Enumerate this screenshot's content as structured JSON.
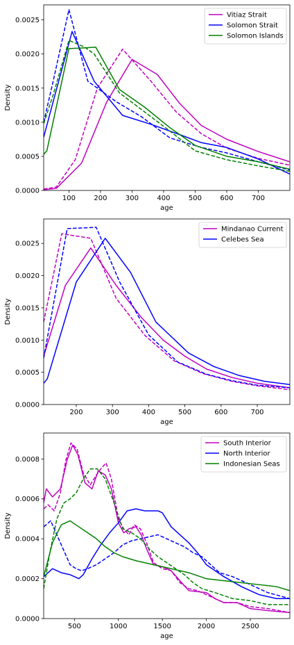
{
  "chart_data": [
    {
      "type": "line",
      "xlabel": "age",
      "ylabel": "Density",
      "xlim": [
        20,
        800
      ],
      "ylim": [
        0,
        0.00272
      ],
      "xticks": [
        100,
        200,
        300,
        400,
        500,
        600,
        700
      ],
      "yticks": [
        0,
        0.0005,
        0.001,
        0.0015,
        0.002,
        0.0025
      ],
      "ytick_labels": [
        "0.0000",
        "0.0005",
        "0.0010",
        "0.0015",
        "0.0020",
        "0.0025"
      ],
      "grid": false,
      "legend_position": "top-right",
      "legend": [
        "Vitiaz Strait",
        "Solomon Strait",
        "Solomon Islands"
      ],
      "series": [
        {
          "name": "Vitiaz Strait",
          "color": "#bf00bf",
          "style": "solid",
          "x": [
            20,
            60,
            140,
            220,
            300,
            380,
            450,
            520,
            600,
            700,
            800
          ],
          "y": [
            1e-05,
            3e-05,
            0.0004,
            0.0013,
            0.00192,
            0.0017,
            0.00128,
            0.00095,
            0.00075,
            0.00057,
            0.00042
          ]
        },
        {
          "name": "Vitiaz Strait",
          "color": "#bf00bf",
          "style": "dashed",
          "x": [
            20,
            60,
            120,
            190,
            270,
            360,
            440,
            520,
            600,
            700,
            800
          ],
          "y": [
            2e-05,
            5e-05,
            0.00045,
            0.0015,
            0.00207,
            0.0016,
            0.00115,
            0.00083,
            0.00062,
            0.00047,
            0.00037
          ]
        },
        {
          "name": "Solomon Strait",
          "color": "#0000ff",
          "style": "solid",
          "x": [
            20,
            50,
            110,
            180,
            270,
            360,
            450,
            520,
            600,
            700,
            800
          ],
          "y": [
            0.00078,
            0.0013,
            0.00233,
            0.0016,
            0.0011,
            0.00097,
            0.00082,
            0.0007,
            0.00063,
            0.00046,
            0.00024
          ]
        },
        {
          "name": "Solomon Strait",
          "color": "#0000ff",
          "style": "dashed",
          "x": [
            20,
            50,
            100,
            160,
            250,
            330,
            420,
            520,
            600,
            700,
            800
          ],
          "y": [
            0.001,
            0.0016,
            0.00265,
            0.0016,
            0.0013,
            0.00108,
            0.00077,
            0.00063,
            0.00055,
            0.00042,
            0.0003
          ]
        },
        {
          "name": "Solomon Islands",
          "color": "#008000",
          "style": "solid",
          "x": [
            20,
            30,
            100,
            150,
            185,
            260,
            340,
            420,
            500,
            600,
            700,
            800
          ],
          "y": [
            0.00053,
            0.00058,
            0.00208,
            0.00209,
            0.0021,
            0.00148,
            0.00122,
            0.00092,
            0.00066,
            0.0005,
            0.00042,
            0.00031
          ]
        },
        {
          "name": "Solomon Islands",
          "color": "#008000",
          "style": "dashed",
          "x": [
            20,
            50,
            100,
            150,
            180,
            260,
            340,
            420,
            500,
            600,
            700,
            800
          ],
          "y": [
            0.00098,
            0.0014,
            0.0022,
            0.0021,
            0.002,
            0.00143,
            0.00115,
            0.00087,
            0.00058,
            0.00045,
            0.00036,
            0.00028
          ]
        }
      ]
    },
    {
      "type": "line",
      "xlabel": "age",
      "ylabel": "Density",
      "xlim": [
        110,
        790
      ],
      "ylim": [
        0,
        0.00288
      ],
      "xticks": [
        200,
        300,
        400,
        500,
        600,
        700
      ],
      "yticks": [
        0,
        0.0005,
        0.001,
        0.0015,
        0.002,
        0.0025
      ],
      "ytick_labels": [
        "0.0000",
        "0.0005",
        "0.0010",
        "0.0015",
        "0.0020",
        "0.0025"
      ],
      "grid": false,
      "legend_position": "top-right",
      "legend": [
        "Mindanao Current",
        "Celebes Sea"
      ],
      "series": [
        {
          "name": "Mindanao Current",
          "color": "#bf00bf",
          "style": "solid",
          "x": [
            110,
            170,
            240,
            310,
            380,
            440,
            500,
            560,
            630,
            700,
            790
          ],
          "y": [
            0.00075,
            0.00185,
            0.00243,
            0.00185,
            0.00135,
            0.001,
            0.00075,
            0.00055,
            0.00042,
            0.00033,
            0.00026
          ]
        },
        {
          "name": "Mindanao Current",
          "color": "#bf00bf",
          "style": "dashed",
          "x": [
            110,
            160,
            240,
            310,
            390,
            470,
            550,
            630,
            700,
            790
          ],
          "y": [
            0.00128,
            0.00265,
            0.00258,
            0.00165,
            0.00107,
            0.00068,
            0.00048,
            0.00036,
            0.00029,
            0.00023
          ]
        },
        {
          "name": "Celebes Sea",
          "color": "#0000ff",
          "style": "solid",
          "x": [
            110,
            120,
            200,
            280,
            350,
            420,
            510,
            580,
            650,
            720,
            790
          ],
          "y": [
            0.00033,
            0.0004,
            0.0019,
            0.00258,
            0.00205,
            0.00128,
            0.0008,
            0.00059,
            0.00045,
            0.00036,
            0.00031
          ]
        },
        {
          "name": "Celebes Sea",
          "color": "#0000ff",
          "style": "dashed",
          "x": [
            110,
            175,
            255,
            320,
            400,
            480,
            560,
            630,
            700,
            790
          ],
          "y": [
            0.00072,
            0.00273,
            0.00275,
            0.0019,
            0.00108,
            0.00066,
            0.00047,
            0.00037,
            0.0003,
            0.00026
          ]
        }
      ]
    },
    {
      "type": "line",
      "xlabel": "age",
      "ylabel": "Density",
      "xlim": [
        150,
        2950
      ],
      "ylim": [
        0,
        0.00093
      ],
      "xticks": [
        500,
        1000,
        1500,
        2000,
        2500
      ],
      "yticks": [
        0,
        0.0002,
        0.0004,
        0.0006,
        0.0008
      ],
      "ytick_labels": [
        "0.0000",
        "0.0002",
        "0.0004",
        "0.0006",
        "0.0008"
      ],
      "grid": false,
      "legend_position": "top-right",
      "legend": [
        "South Interior",
        "North Interior",
        "Indonesian Seas"
      ],
      "series": [
        {
          "name": "South Interior",
          "color": "#bf00bf",
          "style": "solid",
          "x": [
            150,
            180,
            250,
            340,
            420,
            480,
            540,
            620,
            700,
            770,
            850,
            920,
            1000,
            1060,
            1120,
            1200,
            1260,
            1320,
            1400,
            1500,
            1600,
            1700,
            1800,
            1900,
            2000,
            2100,
            2200,
            2350,
            2500,
            2700,
            2950
          ],
          "y": [
            0.00058,
            0.00065,
            0.00061,
            0.00065,
            0.0008,
            0.00087,
            0.00082,
            0.00068,
            0.00065,
            0.00074,
            0.00072,
            0.00065,
            0.00048,
            0.00043,
            0.00045,
            0.00046,
            0.00042,
            0.00035,
            0.00027,
            0.00026,
            0.00024,
            0.00019,
            0.00014,
            0.000135,
            0.00013,
            0.0001,
            8e-05,
            8e-05,
            5e-05,
            4e-05,
            3e-05
          ]
        },
        {
          "name": "South Interior",
          "color": "#bf00bf",
          "style": "dashed",
          "x": [
            150,
            200,
            270,
            340,
            400,
            460,
            530,
            600,
            680,
            750,
            800,
            860,
            920,
            1000,
            1060,
            1120,
            1180,
            1250,
            1320,
            1400,
            1500,
            1600,
            1700,
            1800,
            1900,
            2000,
            2100,
            2200,
            2350,
            2500,
            2700,
            2950
          ],
          "y": [
            0.00055,
            0.00057,
            0.00054,
            0.00063,
            0.00079,
            0.00088,
            0.00085,
            0.00073,
            0.00067,
            0.00072,
            0.00075,
            0.00078,
            0.0007,
            0.0005,
            0.00045,
            0.00042,
            0.00047,
            0.00045,
            0.00038,
            0.00028,
            0.00025,
            0.00024,
            0.00018,
            0.00015,
            0.00014,
            0.00012,
            0.0001,
            8e-05,
            8e-05,
            6e-05,
            5e-05,
            3e-05
          ]
        },
        {
          "name": "North Interior",
          "color": "#0000ff",
          "style": "solid",
          "x": [
            150,
            250,
            350,
            450,
            500,
            550,
            600,
            700,
            800,
            900,
            1000,
            1100,
            1200,
            1300,
            1400,
            1450,
            1500,
            1600,
            1700,
            1800,
            1900,
            2000,
            2100,
            2200,
            2400,
            2600,
            2800,
            2950
          ],
          "y": [
            0.00021,
            0.00025,
            0.00023,
            0.00022,
            0.00021,
            0.0002,
            0.00022,
            0.0003,
            0.00037,
            0.00043,
            0.00048,
            0.00054,
            0.00055,
            0.00054,
            0.00054,
            0.00054,
            0.00053,
            0.00046,
            0.00042,
            0.00038,
            0.00033,
            0.00027,
            0.00024,
            0.00021,
            0.00016,
            0.00012,
            0.0001,
            0.0001
          ]
        },
        {
          "name": "North Interior",
          "color": "#0000ff",
          "style": "dashed",
          "x": [
            150,
            230,
            300,
            380,
            450,
            520,
            580,
            650,
            750,
            850,
            950,
            1050,
            1150,
            1250,
            1350,
            1450,
            1550,
            1650,
            1750,
            1850,
            1950,
            2050,
            2150,
            2300,
            2500,
            2700,
            2950
          ],
          "y": [
            0.00046,
            0.00049,
            0.00042,
            0.00034,
            0.00027,
            0.00025,
            0.00024,
            0.00025,
            0.00027,
            0.0003,
            0.00033,
            0.00037,
            0.00039,
            0.0004,
            0.00041,
            0.00042,
            0.0004,
            0.00038,
            0.00036,
            0.00033,
            0.00031,
            0.00027,
            0.00023,
            0.00021,
            0.00017,
            0.00013,
            0.0001
          ]
        },
        {
          "name": "Indonesian Seas",
          "color": "#008000",
          "style": "solid",
          "x": [
            150,
            250,
            350,
            450,
            550,
            650,
            750,
            850,
            950,
            1050,
            1200,
            1400,
            1600,
            1800,
            2000,
            2200,
            2400,
            2600,
            2800,
            2950
          ],
          "y": [
            0.00021,
            0.00038,
            0.00047,
            0.00049,
            0.00046,
            0.00043,
            0.0004,
            0.00036,
            0.00033,
            0.00031,
            0.00029,
            0.00027,
            0.00025,
            0.00023,
            0.0002,
            0.00019,
            0.00018,
            0.00017,
            0.00016,
            0.00014
          ]
        },
        {
          "name": "Indonesian Seas",
          "color": "#008000",
          "style": "dashed",
          "x": [
            150,
            220,
            300,
            380,
            450,
            520,
            600,
            680,
            760,
            850,
            950,
            1050,
            1150,
            1250,
            1350,
            1450,
            1550,
            1650,
            1750,
            1850,
            1950,
            2100,
            2300,
            2500,
            2700,
            2950
          ],
          "y": [
            0.00015,
            0.00033,
            0.0005,
            0.00058,
            0.0006,
            0.00063,
            0.0007,
            0.00075,
            0.00075,
            0.0007,
            0.00058,
            0.00045,
            0.00043,
            0.0004,
            0.00035,
            0.00031,
            0.00028,
            0.00025,
            0.00022,
            0.00018,
            0.00015,
            0.00013,
            0.0001,
            9e-05,
            7e-05,
            7e-05
          ]
        }
      ]
    }
  ]
}
